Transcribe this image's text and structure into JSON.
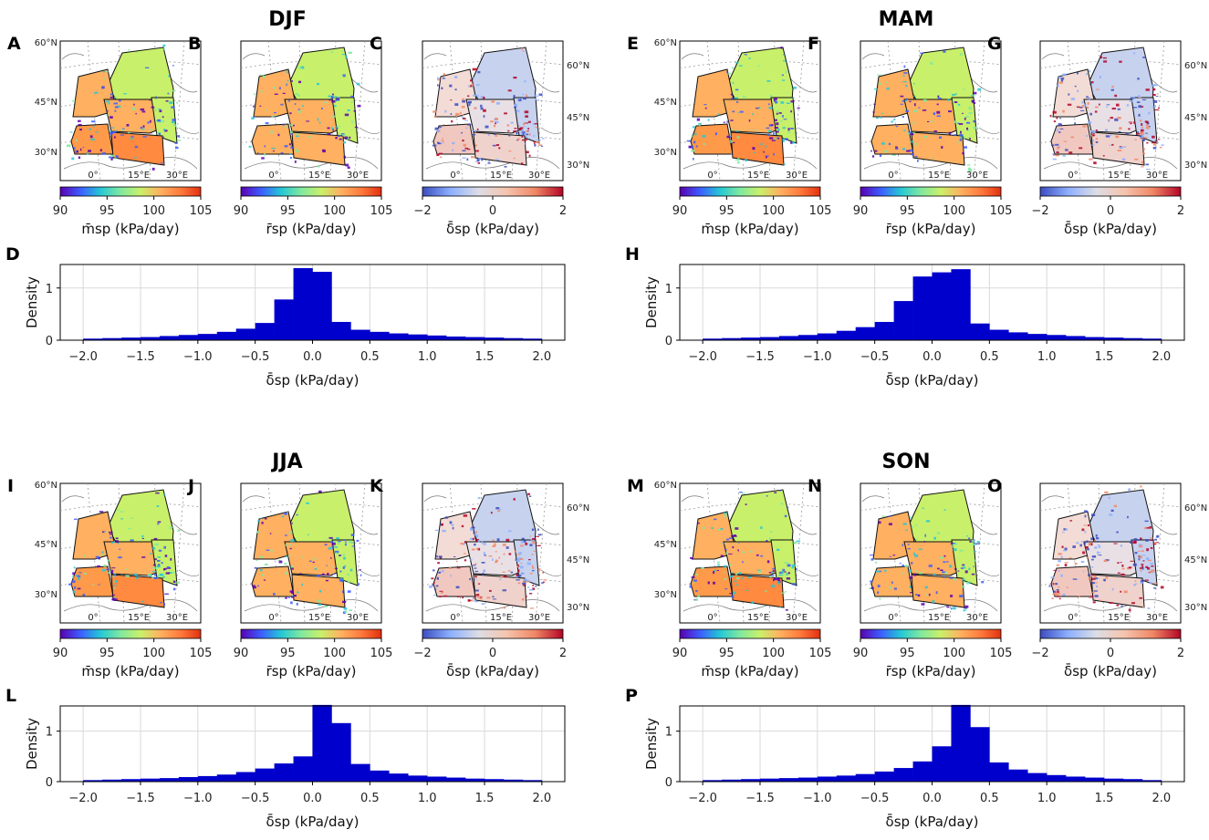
{
  "colors": {
    "hist_bar": "#0000cc",
    "grid": "#d9d9d9",
    "sea": "#ffffff",
    "rainbow": [
      "#5a00b0",
      "#3d5cff",
      "#24c7d6",
      "#80e8a0",
      "#c9f06a",
      "#ffb060",
      "#ff7a3c",
      "#e23010"
    ],
    "diverging": [
      "#3b4cc0",
      "#8db0fe",
      "#dcdde6",
      "#f5c4ad",
      "#f08866",
      "#b40426"
    ]
  },
  "seasons": [
    {
      "title": "DJF",
      "maps": [
        {
          "letter": "A",
          "kind": "m",
          "lat_side": "left",
          "lat_labels": [
            "60°N",
            "45°N",
            "30°N"
          ],
          "lon_labels": [
            "0°",
            "15°E",
            "30°E"
          ],
          "cb_ticks": [
            "90",
            "95",
            "100",
            "105"
          ],
          "cb_label": "m̄sp (kPa/day)"
        },
        {
          "letter": "B",
          "kind": "r",
          "lat_side": "none",
          "lat_labels": [],
          "lon_labels": [
            "0°",
            "15°E",
            "30°E"
          ],
          "cb_ticks": [
            "90",
            "95",
            "100",
            "105"
          ],
          "cb_label": "r̄sp (kPa/day)"
        },
        {
          "letter": "C",
          "kind": "d",
          "lat_side": "right",
          "lat_labels": [
            "60°N",
            "45°N",
            "30°N"
          ],
          "lon_labels": [
            "0°",
            "15°E",
            "30°E"
          ],
          "cb_ticks": [
            "−2",
            "0",
            "2"
          ],
          "cb_label": "δ̄sp (kPa/day)"
        }
      ],
      "hist": {
        "letter": "D",
        "ylabel": "Density",
        "xlabel": "δ̄sp (kPa/day)",
        "x_ticks": [
          "−2.0",
          "−1.5",
          "−1.0",
          "−0.5",
          "0.0",
          "0.5",
          "1.0",
          "1.5",
          "2.0"
        ],
        "y_ticks": [
          "0",
          "1"
        ],
        "ylim": [
          0,
          1.45
        ],
        "values": [
          0.03,
          0.04,
          0.05,
          0.06,
          0.08,
          0.1,
          0.12,
          0.16,
          0.22,
          0.33,
          0.78,
          1.38,
          1.31,
          0.35,
          0.2,
          0.16,
          0.13,
          0.11,
          0.09,
          0.07,
          0.06,
          0.05,
          0.04,
          0.03
        ]
      }
    },
    {
      "title": "MAM",
      "maps": [
        {
          "letter": "E",
          "kind": "m",
          "lat_side": "left",
          "lat_labels": [
            "60°N",
            "45°N",
            "30°N"
          ],
          "lon_labels": [
            "0°",
            "15°E",
            "30°E"
          ],
          "cb_ticks": [
            "90",
            "95",
            "100",
            "105"
          ],
          "cb_label": "m̄sp (kPa/day)"
        },
        {
          "letter": "F",
          "kind": "r",
          "lat_side": "none",
          "lat_labels": [],
          "lon_labels": [
            "0°",
            "15°E",
            "30°E"
          ],
          "cb_ticks": [
            "90",
            "95",
            "100",
            "105"
          ],
          "cb_label": "r̄sp (kPa/day)"
        },
        {
          "letter": "G",
          "kind": "d",
          "lat_side": "right",
          "lat_labels": [
            "60°N",
            "45°N",
            "30°N"
          ],
          "lon_labels": [
            "0°",
            "15°E",
            "30°E"
          ],
          "cb_ticks": [
            "−2",
            "0",
            "2"
          ],
          "cb_label": "δ̄sp (kPa/day)"
        }
      ],
      "hist": {
        "letter": "H",
        "ylabel": "Density",
        "xlabel": "δ̄sp (kPa/day)",
        "x_ticks": [
          "−2.0",
          "−1.5",
          "−1.0",
          "−0.5",
          "0.0",
          "0.5",
          "1.0",
          "1.5",
          "2.0"
        ],
        "y_ticks": [
          "0",
          "1"
        ],
        "ylim": [
          0,
          1.45
        ],
        "values": [
          0.03,
          0.04,
          0.05,
          0.06,
          0.08,
          0.1,
          0.13,
          0.18,
          0.25,
          0.35,
          0.75,
          1.22,
          1.3,
          1.36,
          0.32,
          0.2,
          0.15,
          0.12,
          0.1,
          0.08,
          0.06,
          0.05,
          0.04,
          0.03
        ]
      }
    },
    {
      "title": "JJA",
      "maps": [
        {
          "letter": "I",
          "kind": "m",
          "lat_side": "left",
          "lat_labels": [
            "60°N",
            "45°N",
            "30°N"
          ],
          "lon_labels": [
            "0°",
            "15°E",
            "30°E"
          ],
          "cb_ticks": [
            "90",
            "95",
            "100",
            "105"
          ],
          "cb_label": "m̄sp (kPa/day)"
        },
        {
          "letter": "J",
          "kind": "r",
          "lat_side": "none",
          "lat_labels": [],
          "lon_labels": [
            "0°",
            "15°E",
            "30°E"
          ],
          "cb_ticks": [
            "90",
            "95",
            "100",
            "105"
          ],
          "cb_label": "r̄sp (kPa/day)"
        },
        {
          "letter": "K",
          "kind": "d",
          "lat_side": "right",
          "lat_labels": [
            "60°N",
            "45°N",
            "30°N"
          ],
          "lon_labels": [
            "0°",
            "15°E",
            "30°E"
          ],
          "cb_ticks": [
            "−2",
            "0",
            "2"
          ],
          "cb_label": "δ̄sp (kPa/day)"
        }
      ],
      "hist": {
        "letter": "L",
        "ylabel": "Density",
        "xlabel": "δ̄sp (kPa/day)",
        "x_ticks": [
          "−2.0",
          "−1.5",
          "−1.0",
          "−0.5",
          "0.0",
          "0.5",
          "1.0",
          "1.5",
          "2.0"
        ],
        "y_ticks": [
          "0",
          "1"
        ],
        "ylim": [
          0,
          1.5
        ],
        "values": [
          0.03,
          0.04,
          0.05,
          0.06,
          0.07,
          0.09,
          0.11,
          0.14,
          0.19,
          0.26,
          0.36,
          0.5,
          1.52,
          1.16,
          0.35,
          0.22,
          0.16,
          0.12,
          0.1,
          0.08,
          0.06,
          0.05,
          0.04,
          0.03
        ]
      }
    },
    {
      "title": "SON",
      "maps": [
        {
          "letter": "M",
          "kind": "m",
          "lat_side": "left",
          "lat_labels": [
            "60°N",
            "45°N",
            "30°N"
          ],
          "lon_labels": [
            "0°",
            "15°E",
            "30°E"
          ],
          "cb_ticks": [
            "90",
            "95",
            "100",
            "105"
          ],
          "cb_label": "m̄sp (kPa/day)"
        },
        {
          "letter": "N",
          "kind": "r",
          "lat_side": "none",
          "lat_labels": [],
          "lon_labels": [
            "0°",
            "15°E",
            "30°E"
          ],
          "cb_ticks": [
            "90",
            "95",
            "100",
            "105"
          ],
          "cb_label": "r̄sp (kPa/day)"
        },
        {
          "letter": "O",
          "kind": "d",
          "lat_side": "right",
          "lat_labels": [
            "60°N",
            "45°N",
            "30°N"
          ],
          "lon_labels": [
            "0°",
            "15°E",
            "30°E"
          ],
          "cb_ticks": [
            "−2",
            "0",
            "2"
          ],
          "cb_label": "δ̄sp (kPa/day)"
        }
      ],
      "hist": {
        "letter": "P",
        "ylabel": "Density",
        "xlabel": "δ̄sp (kPa/day)",
        "x_ticks": [
          "−2.0",
          "−1.5",
          "−1.0",
          "−0.5",
          "0.0",
          "0.5",
          "1.0",
          "1.5",
          "2.0"
        ],
        "y_ticks": [
          "0",
          "1"
        ],
        "ylim": [
          0,
          1.5
        ],
        "values": [
          0.03,
          0.04,
          0.05,
          0.06,
          0.07,
          0.08,
          0.1,
          0.12,
          0.15,
          0.2,
          0.27,
          0.4,
          0.7,
          1.52,
          1.08,
          0.38,
          0.24,
          0.17,
          0.13,
          0.1,
          0.08,
          0.06,
          0.05,
          0.03
        ]
      }
    }
  ],
  "chart_data": [
    {
      "type": "bar",
      "panel": "D",
      "title": "DJF",
      "xlabel": "δ̄sp (kPa/day)",
      "ylabel": "Density",
      "xlim": [
        -2.0,
        2.0
      ],
      "ylim": [
        0,
        1.45
      ],
      "bin_width": 0.1667,
      "x": [
        -1.92,
        -1.75,
        -1.58,
        -1.42,
        -1.25,
        -1.08,
        -0.92,
        -0.75,
        -0.58,
        -0.42,
        -0.25,
        -0.08,
        0.08,
        0.25,
        0.42,
        0.58,
        0.75,
        0.92,
        1.08,
        1.25,
        1.42,
        1.58,
        1.75,
        1.92
      ],
      "values": [
        0.03,
        0.04,
        0.05,
        0.06,
        0.08,
        0.1,
        0.12,
        0.16,
        0.22,
        0.33,
        0.78,
        1.38,
        1.31,
        0.35,
        0.2,
        0.16,
        0.13,
        0.11,
        0.09,
        0.07,
        0.06,
        0.05,
        0.04,
        0.03
      ]
    },
    {
      "type": "bar",
      "panel": "H",
      "title": "MAM",
      "xlabel": "δ̄sp (kPa/day)",
      "ylabel": "Density",
      "xlim": [
        -2.0,
        2.0
      ],
      "ylim": [
        0,
        1.45
      ],
      "bin_width": 0.1667,
      "values": [
        0.03,
        0.04,
        0.05,
        0.06,
        0.08,
        0.1,
        0.13,
        0.18,
        0.25,
        0.35,
        0.75,
        1.22,
        1.3,
        1.36,
        0.32,
        0.2,
        0.15,
        0.12,
        0.1,
        0.08,
        0.06,
        0.05,
        0.04,
        0.03
      ]
    },
    {
      "type": "bar",
      "panel": "L",
      "title": "JJA",
      "xlabel": "δ̄sp (kPa/day)",
      "ylabel": "Density",
      "xlim": [
        -2.0,
        2.0
      ],
      "ylim": [
        0,
        1.5
      ],
      "bin_width": 0.1667,
      "values": [
        0.03,
        0.04,
        0.05,
        0.06,
        0.07,
        0.09,
        0.11,
        0.14,
        0.19,
        0.26,
        0.36,
        0.5,
        1.52,
        1.16,
        0.35,
        0.22,
        0.16,
        0.12,
        0.1,
        0.08,
        0.06,
        0.05,
        0.04,
        0.03
      ]
    },
    {
      "type": "bar",
      "panel": "P",
      "title": "SON",
      "xlabel": "δ̄sp (kPa/day)",
      "ylabel": "Density",
      "xlim": [
        -2.0,
        2.0
      ],
      "ylim": [
        0,
        1.5
      ],
      "bin_width": 0.1667,
      "values": [
        0.03,
        0.04,
        0.05,
        0.06,
        0.07,
        0.08,
        0.1,
        0.12,
        0.15,
        0.2,
        0.27,
        0.4,
        0.7,
        1.52,
        1.08,
        0.38,
        0.24,
        0.17,
        0.13,
        0.1,
        0.08,
        0.06,
        0.05,
        0.03
      ]
    },
    {
      "type": "heatmap",
      "panel": "maps",
      "colorbar_m_r": {
        "range": [
          90,
          105
        ],
        "ticks": [
          90,
          95,
          100,
          105
        ]
      },
      "colorbar_delta": {
        "range": [
          -2,
          2
        ],
        "ticks": [
          -2,
          0,
          2
        ]
      }
    }
  ]
}
